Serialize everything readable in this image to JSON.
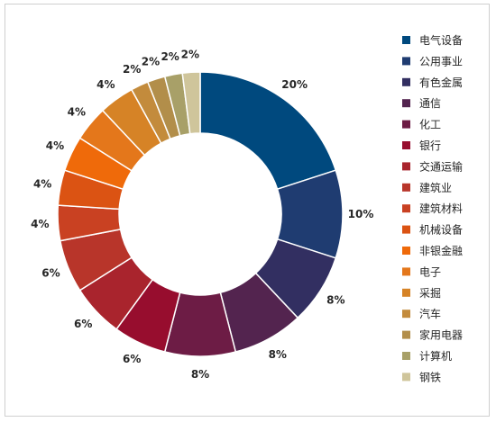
{
  "chart_data": {
    "type": "pie",
    "donut": true,
    "categories": [
      "电气设备",
      "公用事业",
      "有色金属",
      "通信",
      "化工",
      "银行",
      "交通运输",
      "建筑业",
      "建筑材料",
      "机械设备",
      "非银金融",
      "电子",
      "采掘",
      "汽车",
      "家用电器",
      "计算机",
      "钢铁"
    ],
    "values": [
      20,
      10,
      8,
      8,
      8,
      6,
      6,
      6,
      4,
      4,
      4,
      4,
      4,
      2,
      2,
      2,
      2
    ],
    "labels": [
      "20%",
      "10%",
      "8%",
      "8%",
      "8%",
      "6%",
      "6%",
      "6%",
      "4%",
      "4%",
      "4%",
      "4%",
      "4%",
      "2%",
      "2%",
      "2%",
      "2%"
    ],
    "colors": [
      "#00497e",
      "#1f3c71",
      "#322f61",
      "#53244f",
      "#6d1c45",
      "#970d2e",
      "#a9242d",
      "#b8352a",
      "#c94122",
      "#db5313",
      "#ef6a0a",
      "#e4771b",
      "#d68326",
      "#c38b3c",
      "#b28e4a",
      "#a8a068",
      "#cfc59b"
    ],
    "legend_position": "right",
    "title": "",
    "grid": false
  }
}
